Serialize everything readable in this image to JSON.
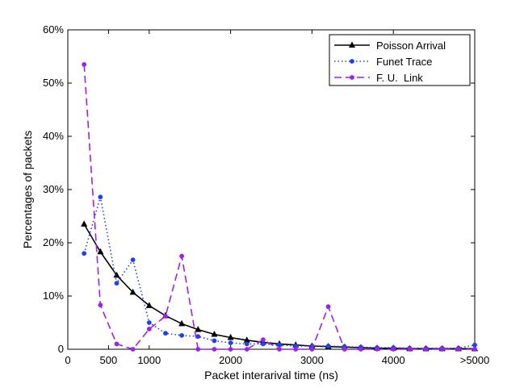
{
  "chart_data": {
    "type": "line",
    "title": "",
    "xlabel": "Packet interarival time (ns)",
    "ylabel": "Percentages of packets",
    "xlim": [
      0,
      5000
    ],
    "ylim": [
      0,
      60
    ],
    "x_ticks": [
      {
        "value": 0,
        "label": "0"
      },
      {
        "value": 500,
        "label": "500"
      },
      {
        "value": 1000,
        "label": "1000"
      },
      {
        "value": 2000,
        "label": "2000"
      },
      {
        "value": 3000,
        "label": "3000"
      },
      {
        "value": 4000,
        "label": "4000"
      },
      {
        "value": 5000,
        "label": ">5000"
      }
    ],
    "y_ticks": [
      {
        "value": 0,
        "label": "0"
      },
      {
        "value": 10,
        "label": "10%"
      },
      {
        "value": 20,
        "label": "20%"
      },
      {
        "value": 30,
        "label": "30%"
      },
      {
        "value": 40,
        "label": "40%"
      },
      {
        "value": 50,
        "label": "50%"
      },
      {
        "value": 60,
        "label": "60%"
      }
    ],
    "grid": false,
    "legend_position": "top-right",
    "x": [
      200,
      400,
      600,
      800,
      1000,
      1200,
      1400,
      1600,
      1800,
      2000,
      2200,
      2400,
      2600,
      2800,
      3000,
      3200,
      3400,
      3600,
      3800,
      4000,
      4200,
      4400,
      4600,
      4800,
      5000
    ],
    "series": [
      {
        "name": "Poisson Arrival",
        "color": "#000000",
        "style": "solid",
        "marker": "triangle",
        "values": [
          23.5,
          18.3,
          13.9,
          10.7,
          8.2,
          6.3,
          4.8,
          3.7,
          2.8,
          2.2,
          1.7,
          1.3,
          1.0,
          0.8,
          0.6,
          0.5,
          0.4,
          0.3,
          0.2,
          0.2,
          0.1,
          0.1,
          0.1,
          0.1,
          0.1
        ]
      },
      {
        "name": "Funet Trace",
        "color": "#1f3fff",
        "style": "dotted",
        "marker": "dot",
        "values": [
          18.0,
          28.6,
          12.4,
          16.8,
          5.0,
          3.0,
          2.6,
          2.4,
          1.6,
          1.2,
          1.0,
          1.0,
          0.8,
          0.6,
          0.6,
          0.6,
          0.5,
          0.4,
          0.3,
          0.3,
          0.2,
          0.2,
          0.2,
          0.2,
          0.8
        ]
      },
      {
        "name": "F. U.  Link",
        "color": "#a020f0",
        "style": "dashed",
        "marker": "dot",
        "values": [
          53.5,
          8.3,
          1.0,
          0.0,
          3.8,
          6.2,
          17.5,
          0.0,
          0.0,
          0.0,
          0.0,
          1.8,
          0.0,
          0.0,
          0.0,
          8.0,
          0.0,
          0.0,
          0.0,
          0.0,
          0.0,
          0.0,
          0.0,
          0.0,
          0.0
        ]
      }
    ]
  }
}
